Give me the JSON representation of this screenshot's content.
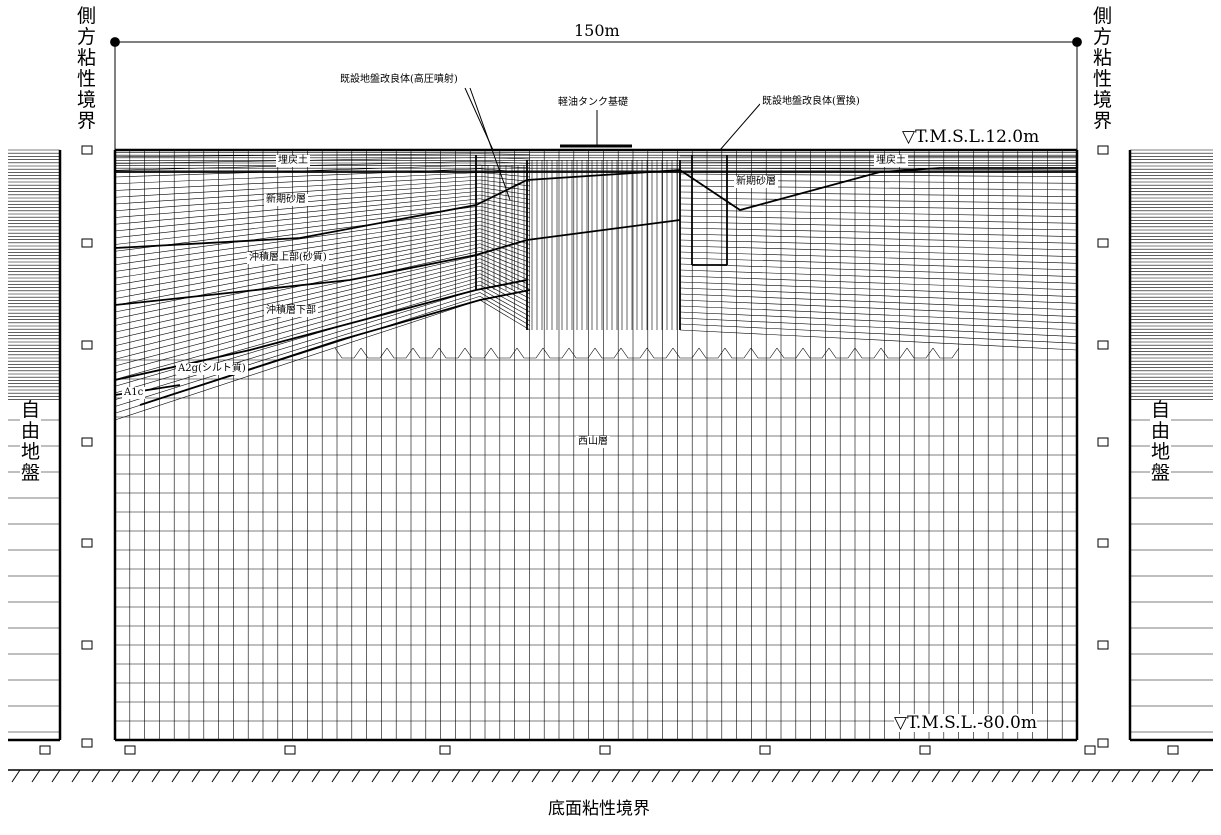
{
  "width_label": "150m",
  "side_boundary_label": "側方粘性境界",
  "bottom_boundary_label": "底面粘性境界",
  "free_field_label": "自由地盤",
  "level_top": "▽T.M.S.L.12.0m",
  "level_bottom": "▽T.M.S.L.-80.0m",
  "foundation_label": "軽油タンク基礎",
  "improvement_jet_label": "既設地盤改良体(高圧噴射)",
  "improvement_replace_label": "既設地盤改良体(置換)",
  "layers": {
    "fill_left": "埋戻土",
    "fill_right": "埋戻土",
    "new_sand_left": "新期砂層",
    "new_sand_right": "新期砂層",
    "alluvium_upper": "沖積層上部(砂質)",
    "alluvium_lower": "沖積層下部",
    "a2g": "A2g(シルト質)",
    "a1c": "A1c",
    "nishiyama": "西山層"
  }
}
